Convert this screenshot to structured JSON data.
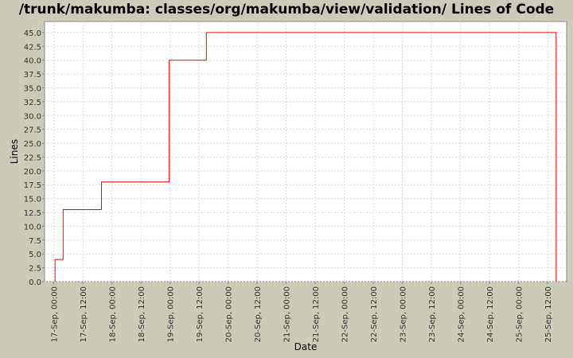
{
  "chart_data": {
    "type": "line",
    "step": true,
    "title": "/trunk/makumba: classes/org/makumba/view/validation/ Lines of Code",
    "xlabel": "Date",
    "ylabel": "Lines",
    "xlim": [
      "2000-09-16T20:10",
      "2000-09-25T19:50"
    ],
    "ylim": [
      0,
      47
    ],
    "grid": true,
    "yticks": [
      "0.0",
      "2.5",
      "5.0",
      "7.5",
      "10.0",
      "12.5",
      "15.0",
      "17.5",
      "20.0",
      "22.5",
      "25.0",
      "27.5",
      "30.0",
      "32.5",
      "35.0",
      "37.5",
      "40.0",
      "42.5",
      "45.0"
    ],
    "xticks": [
      "17-Sep, 00:00",
      "17-Sep, 12:00",
      "18-Sep, 00:00",
      "18-Sep, 12:00",
      "19-Sep, 00:00",
      "19-Sep, 12:00",
      "20-Sep, 00:00",
      "20-Sep, 12:00",
      "21-Sep, 00:00",
      "21-Sep, 12:00",
      "22-Sep, 00:00",
      "22-Sep, 12:00",
      "23-Sep, 00:00",
      "23-Sep, 12:00",
      "24-Sep, 00:00",
      "24-Sep, 12:00",
      "25-Sep, 00:00",
      "25-Sep, 12:00"
    ],
    "series": [
      {
        "color": "#ff0000",
        "x": [
          "2000-09-17T00:30",
          "2000-09-17T03:50",
          "2000-09-17T19:40",
          "2000-09-18T23:40",
          "2000-09-19T15:00",
          "2000-09-25T15:30"
        ],
        "y": [
          4,
          13,
          18,
          40,
          45,
          0
        ]
      }
    ]
  }
}
